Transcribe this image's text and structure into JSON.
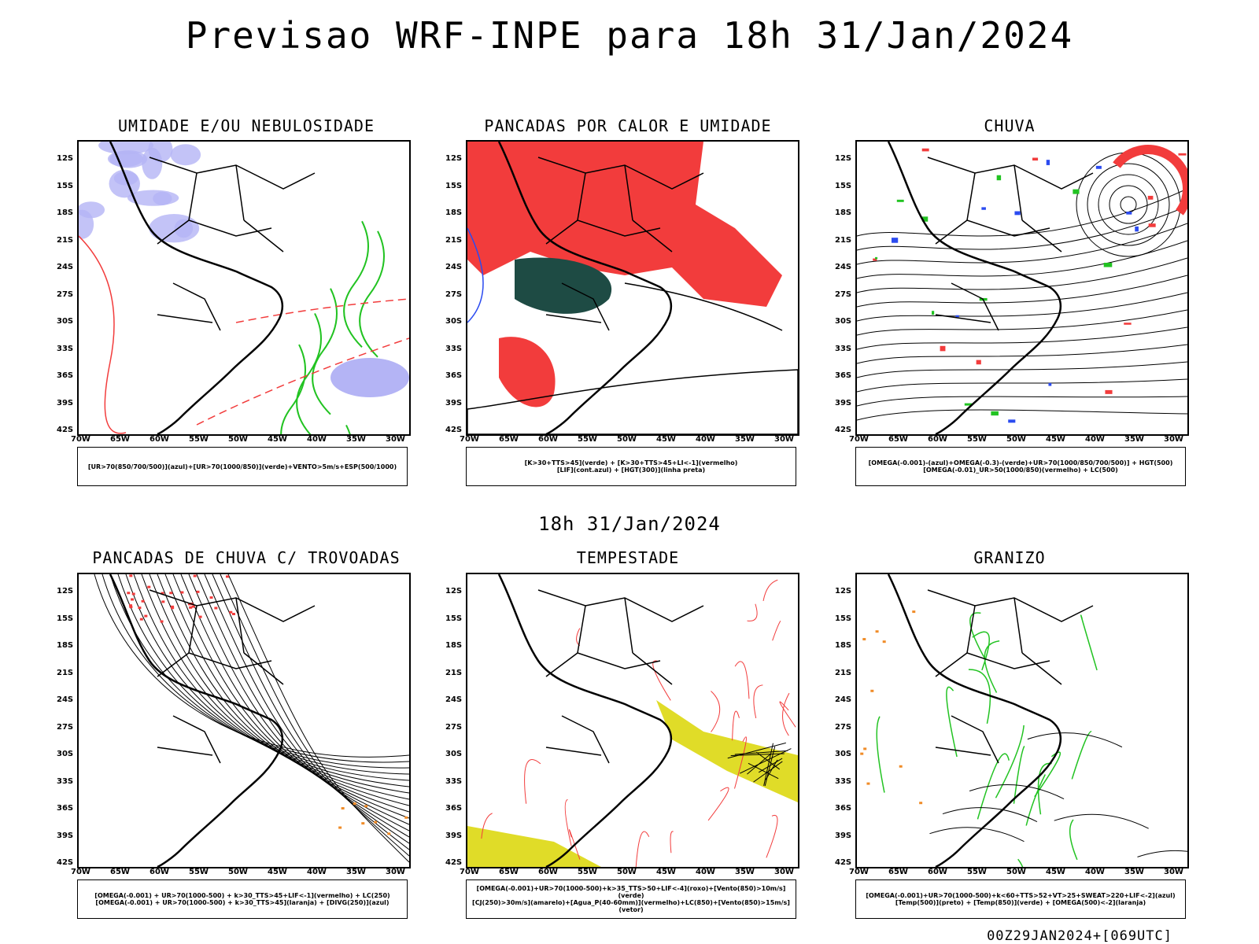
{
  "title": "Previsao WRF-INPE  para 18h 31/Jan/2024",
  "mid_title": "18h 31/Jan/2024",
  "footer": "00Z29JAN2024+[069UTC]",
  "lat_labels": [
    "12S",
    "15S",
    "18S",
    "21S",
    "24S",
    "27S",
    "30S",
    "33S",
    "36S",
    "39S",
    "42S"
  ],
  "lon_labels": [
    "70W",
    "65W",
    "60W",
    "55W",
    "50W",
    "45W",
    "40W",
    "35W",
    "30W"
  ],
  "panels": [
    {
      "title": "UMIDADE E/OU NEBULOSIDADE",
      "legend": [
        "[UR>70(850/700/500)](azul)+[UR>70(1000/850)](verde)+VENTO>5m/s+ESP(500/1000)"
      ]
    },
    {
      "title": "PANCADAS POR CALOR E UMIDADE",
      "legend": [
        "[K>30+TTS>45](verde)  +  [K>30+TTS>45+LI<-1](vermelho)",
        "[LIF](cont.azul)  +  [HGT(300)](linha preta)"
      ]
    },
    {
      "title": "CHUVA",
      "legend": [
        "[OMEGA(-0.001)-(azul)+OMEGA(-0.3)-(verde)+UR>70(1000/850/700/500)]  +  HGT(500)",
        "[OMEGA(-0.01)_UR>50(1000/850)(vermelho)  +  LC(500)"
      ]
    },
    {
      "title": "PANCADAS DE CHUVA C/ TROVOADAS",
      "legend": [
        "[OMEGA(-0.001)  +  UR>70(1000-500)  +  k>30_TTS>45+LIF<-1](vermelho)  +  LC(250)",
        "[OMEGA(-0.001)  +  UR>70(1000-500)  +  k>30_TTS>45](laranja)  +  [DIVG(250)](azul)"
      ]
    },
    {
      "title": "TEMPESTADE",
      "legend": [
        "[OMEGA(-0.001)+UR>70(1000-500)+k>35_TTS>50+LIF<-4](roxo)+[Vento(850)>10m/s](verde)",
        "[CJ(250)>30m/s](amarelo)+[Agua_P(40-60mm)](vermelho)+LC(850)+[Vento(850)>15m/s](vetor)"
      ]
    },
    {
      "title": "GRANIZO",
      "legend": [
        "[OMEGA(-0.001)+UR>70(1000-500)+k<60+TTS>52+VT>25+SWEAT>220+LIF<-2](azul)",
        "[Temp(500)](preto)  +  [Temp(850)](verde)  +  [OMEGA(500)<-2](laranja)"
      ]
    }
  ],
  "colors": {
    "red": "#f23c3c",
    "green": "#22c322",
    "blue": "#2b4bf0",
    "lavender": "#b4b4f5",
    "darkgreen": "#1e4b44",
    "yellow": "#e0dc28",
    "orange": "#f08c28",
    "purple": "#c020d0"
  }
}
